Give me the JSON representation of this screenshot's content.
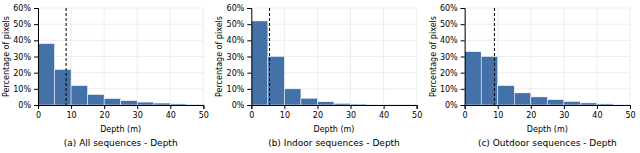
{
  "chart_data": [
    {
      "type": "histogram",
      "title": "(a) All sequences - Depth",
      "xlabel": "Depth (m)",
      "ylabel": "Percentage of pixels",
      "bins": [
        0,
        5,
        10,
        15,
        20,
        25,
        30,
        35,
        40,
        45,
        50
      ],
      "values": [
        0.38,
        0.22,
        0.12,
        0.065,
        0.04,
        0.027,
        0.018,
        0.012,
        0.007,
        0.004
      ],
      "color": "#4472a8",
      "xlim": [
        0,
        50
      ],
      "ylim": [
        0,
        0.6
      ],
      "xticks": [
        0,
        10,
        20,
        30,
        40,
        50
      ],
      "yticks": [
        {
          "value": 0.0,
          "label": "0%"
        },
        {
          "value": 0.1,
          "label": "10%"
        },
        {
          "value": 0.2,
          "label": "20%"
        },
        {
          "value": 0.3,
          "label": "30%"
        },
        {
          "value": 0.4,
          "label": "40%"
        },
        {
          "value": 0.5,
          "label": "50%"
        },
        {
          "value": 0.6,
          "label": "60%"
        }
      ],
      "reference_lines": [
        {
          "x": 8.5,
          "color": "black",
          "line_style": "dashed"
        }
      ],
      "grid": true
    },
    {
      "type": "histogram",
      "title": "(b) Indoor sequences - Depth",
      "xlabel": "Depth (m)",
      "ylabel": "Percentage of pixels",
      "bins": [
        0,
        5,
        10,
        15,
        20,
        25,
        30,
        35,
        40,
        45,
        50
      ],
      "values": [
        0.52,
        0.3,
        0.1,
        0.042,
        0.02,
        0.01,
        0.006,
        0.003,
        0.0015,
        0.001
      ],
      "color": "#4472a8",
      "xlim": [
        0,
        50
      ],
      "ylim": [
        0,
        0.6
      ],
      "xticks": [
        0,
        10,
        20,
        30,
        40,
        50
      ],
      "yticks": [
        {
          "value": 0.0,
          "label": "0%"
        },
        {
          "value": 0.1,
          "label": "10%"
        },
        {
          "value": 0.2,
          "label": "20%"
        },
        {
          "value": 0.3,
          "label": "30%"
        },
        {
          "value": 0.4,
          "label": "40%"
        },
        {
          "value": 0.5,
          "label": "50%"
        },
        {
          "value": 0.6,
          "label": "60%"
        }
      ],
      "reference_lines": [
        {
          "x": 5.5,
          "color": "black",
          "line_style": "dashed"
        }
      ],
      "grid": true
    },
    {
      "type": "histogram",
      "title": "(c) Outdoor sequences - Depth",
      "xlabel": "Depth (m)",
      "ylabel": "Percentage of pixels",
      "bins": [
        0,
        5,
        10,
        15,
        20,
        25,
        30,
        35,
        40,
        45,
        50
      ],
      "values": [
        0.33,
        0.3,
        0.12,
        0.075,
        0.05,
        0.033,
        0.022,
        0.013,
        0.007,
        0.003
      ],
      "color": "#4472a8",
      "xlim": [
        0,
        50
      ],
      "ylim": [
        0,
        0.6
      ],
      "xticks": [
        0,
        10,
        20,
        30,
        40,
        50
      ],
      "yticks": [
        {
          "value": 0.0,
          "label": "0%"
        },
        {
          "value": 0.1,
          "label": "10%"
        },
        {
          "value": 0.2,
          "label": "20%"
        },
        {
          "value": 0.3,
          "label": "30%"
        },
        {
          "value": 0.4,
          "label": "40%"
        },
        {
          "value": 0.5,
          "label": "50%"
        },
        {
          "value": 0.6,
          "label": "60%"
        }
      ],
      "reference_lines": [
        {
          "x": 9.0,
          "color": "black",
          "line_style": "dashed"
        }
      ],
      "grid": true
    }
  ]
}
